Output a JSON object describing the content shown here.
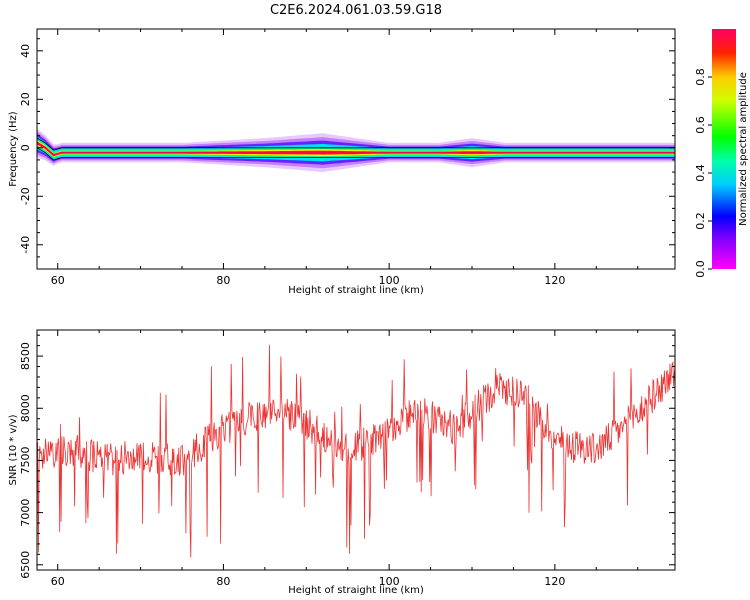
{
  "chart_data": [
    {
      "type": "heatmap",
      "title": "C2E6.2024.061.03.59.G18",
      "xlabel": "Height of straight line (km)",
      "ylabel": "Frequency (Hz)",
      "xlim": [
        57.5,
        134.5
      ],
      "ylim": [
        -50,
        49
      ],
      "xticks": [
        60,
        80,
        100,
        120
      ],
      "yticks": [
        40,
        20,
        0,
        -20,
        -40
      ],
      "colorbar": {
        "label": "Normalized spectral amplitude",
        "range": [
          0,
          1
        ],
        "ticks": [
          0.0,
          0.2,
          0.4,
          0.6,
          0.8
        ],
        "tick_labels": [
          "0.0",
          "0.2",
          "0.4",
          "0.6",
          "0.8"
        ],
        "colormap": "gist_rainbow_r"
      },
      "peak_line": {
        "frequency_hz": -2,
        "x": [
          57.5,
          58.5,
          59.5,
          60.5,
          134.5
        ],
        "y": [
          2,
          0,
          -3,
          -2,
          -2
        ]
      },
      "spread": [
        {
          "x": 57.5,
          "width": 6
        },
        {
          "x": 60,
          "width": 4
        },
        {
          "x": 75,
          "width": 4
        },
        {
          "x": 85,
          "width": 6
        },
        {
          "x": 92,
          "width": 8
        },
        {
          "x": 100,
          "width": 4
        },
        {
          "x": 106,
          "width": 4
        },
        {
          "x": 110,
          "width": 6
        },
        {
          "x": 114,
          "width": 4
        },
        {
          "x": 134.5,
          "width": 4
        }
      ]
    },
    {
      "type": "line",
      "title": "",
      "xlabel": "Height of straight line (km)",
      "ylabel": "SNR (10 * v/v)",
      "xlim": [
        57.5,
        134.5
      ],
      "ylim": [
        6450,
        8750
      ],
      "xticks": [
        60,
        80,
        100,
        120
      ],
      "yticks": [
        8500,
        8000,
        7500,
        7000,
        6500
      ],
      "color": "#ee3333",
      "trend": {
        "x": [
          57.5,
          62,
          66,
          70,
          75,
          80,
          86,
          90,
          95,
          100,
          103,
          108,
          113,
          116,
          120,
          125,
          130,
          134.5
        ],
        "y": [
          7550,
          7600,
          7500,
          7550,
          7500,
          7800,
          8000,
          7850,
          7600,
          7750,
          8000,
          7800,
          8200,
          8150,
          7700,
          7600,
          7950,
          8350
        ]
      }
    }
  ]
}
